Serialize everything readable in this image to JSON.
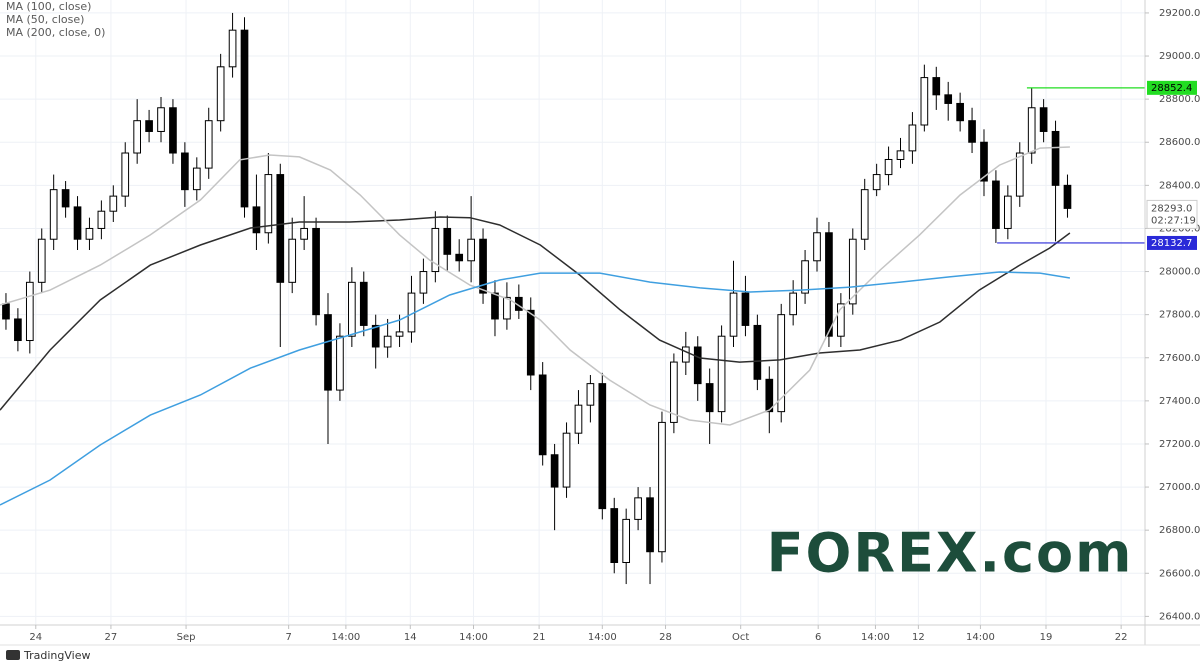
{
  "chart_data": {
    "type": "candlestick",
    "xlim": [
      -0.5,
      95.5
    ],
    "ylim": [
      26360,
      29260
    ],
    "grid": true,
    "xticks": [
      {
        "value": 2.5,
        "label": "24"
      },
      {
        "value": 8.8,
        "label": "27"
      },
      {
        "value": 15.1,
        "label": "Sep"
      },
      {
        "value": 23.7,
        "label": "7"
      },
      {
        "value": 28.5,
        "label": "14:00"
      },
      {
        "value": 33.9,
        "label": "14"
      },
      {
        "value": 39.2,
        "label": "14:00"
      },
      {
        "value": 44.7,
        "label": "21"
      },
      {
        "value": 50.0,
        "label": "14:00"
      },
      {
        "value": 55.3,
        "label": "28"
      },
      {
        "value": 61.6,
        "label": "Oct"
      },
      {
        "value": 68.1,
        "label": "6"
      },
      {
        "value": 72.9,
        "label": "14:00"
      },
      {
        "value": 76.5,
        "label": "12"
      },
      {
        "value": 81.7,
        "label": "14:00"
      },
      {
        "value": 87.2,
        "label": "19"
      },
      {
        "value": 93.5,
        "label": "22"
      }
    ],
    "yticks": [
      {
        "value": 26400,
        "label": "26400.0"
      },
      {
        "value": 26600,
        "label": "26600.0"
      },
      {
        "value": 26800,
        "label": "26800.0"
      },
      {
        "value": 27000,
        "label": "27000.0"
      },
      {
        "value": 27200,
        "label": "27200.0"
      },
      {
        "value": 27400,
        "label": "27400.0"
      },
      {
        "value": 27600,
        "label": "27600.0"
      },
      {
        "value": 27800,
        "label": "27800.0"
      },
      {
        "value": 28000,
        "label": "28000.0"
      },
      {
        "value": 28200,
        "label": "28200.0"
      },
      {
        "value": 28400,
        "label": "28400.0"
      },
      {
        "value": 28600,
        "label": "28600.0"
      },
      {
        "value": 28800,
        "label": "28800.0"
      },
      {
        "value": 29000,
        "label": "29000.0"
      },
      {
        "value": 29200,
        "label": "29200.0"
      }
    ],
    "up_color": "#ffffff",
    "down_color": "#000000",
    "open": [
      27850,
      27780,
      27680,
      27950,
      28150,
      28380,
      28300,
      28150,
      28200,
      28280,
      28350,
      28550,
      28700,
      28650,
      28760,
      28550,
      28380,
      28480,
      28700,
      28950,
      29120,
      28300,
      28180,
      28450,
      27950,
      28150,
      28200,
      27800,
      27450,
      27700,
      27950,
      27750,
      27650,
      27700,
      27720,
      27900,
      28000,
      28200,
      28080,
      28050,
      28150,
      27900,
      27780,
      27880,
      27820,
      27520,
      27150,
      27000,
      27250,
      27380,
      27480,
      26900,
      26650,
      26850,
      26950,
      26700,
      27300,
      27580,
      27650,
      27480,
      27350,
      27700,
      27900,
      27750,
      27500,
      27350,
      27800,
      27900,
      28050,
      28180,
      27700,
      27850,
      28150,
      28380,
      28450,
      28520,
      28560,
      28680,
      28900,
      28820,
      28780,
      28700,
      28600,
      28420,
      28200,
      28350,
      28550,
      28760,
      28650,
      28400
    ],
    "high": [
      27900,
      27830,
      28000,
      28200,
      28450,
      28420,
      28350,
      28250,
      28330,
      28400,
      28600,
      28800,
      28750,
      28810,
      28800,
      28600,
      28530,
      28760,
      29010,
      29200,
      29180,
      28450,
      28550,
      28500,
      28250,
      28350,
      28250,
      27900,
      27760,
      28020,
      28000,
      27800,
      27780,
      27800,
      27980,
      28060,
      28280,
      28260,
      28150,
      28350,
      28200,
      27960,
      27950,
      27940,
      27880,
      27580,
      27200,
      27300,
      27450,
      27520,
      27530,
      26950,
      26900,
      27000,
      27000,
      27350,
      27620,
      27720,
      27700,
      27550,
      27750,
      28050,
      27980,
      27800,
      27560,
      27850,
      27960,
      28100,
      28250,
      28230,
      27900,
      28200,
      28430,
      28500,
      28580,
      28620,
      28740,
      28960,
      28950,
      28880,
      28830,
      28760,
      28660,
      28470,
      28400,
      28600,
      28852.4,
      28800,
      28700,
      28450
    ],
    "low": [
      27730,
      27630,
      27620,
      27900,
      28100,
      28250,
      28100,
      28100,
      28150,
      28230,
      28300,
      28500,
      28600,
      28600,
      28500,
      28300,
      28330,
      28430,
      28650,
      28900,
      28250,
      28100,
      28130,
      27650,
      27900,
      28100,
      27750,
      27200,
      27400,
      27650,
      27700,
      27550,
      27600,
      27650,
      27670,
      27850,
      27950,
      28000,
      28000,
      27950,
      27850,
      27700,
      27730,
      27780,
      27450,
      27100,
      26800,
      26950,
      27200,
      27300,
      26850,
      26600,
      26550,
      26800,
      26550,
      26650,
      27250,
      27520,
      27400,
      27200,
      27300,
      27650,
      27700,
      27450,
      27250,
      27300,
      27750,
      27850,
      28000,
      27650,
      27650,
      27800,
      28100,
      28350,
      28400,
      28480,
      28500,
      28650,
      28750,
      28700,
      28650,
      28550,
      28350,
      28132.7,
      28150,
      28300,
      28500,
      28600,
      28140,
      28250
    ],
    "close": [
      27780,
      27680,
      27950,
      28150,
      28380,
      28300,
      28150,
      28200,
      28280,
      28350,
      28550,
      28700,
      28650,
      28760,
      28550,
      28380,
      28480,
      28700,
      28950,
      29120,
      28300,
      28180,
      28450,
      27950,
      28150,
      28200,
      27800,
      27450,
      27700,
      27950,
      27750,
      27650,
      27700,
      27720,
      27900,
      28000,
      28200,
      28080,
      28050,
      28150,
      27900,
      27780,
      27880,
      27820,
      27520,
      27150,
      27000,
      27250,
      27380,
      27480,
      26900,
      26650,
      26850,
      26950,
      26700,
      27300,
      27580,
      27650,
      27480,
      27350,
      27700,
      27900,
      27750,
      27500,
      27350,
      27800,
      27900,
      28050,
      28180,
      27700,
      27850,
      28150,
      28380,
      28450,
      28520,
      28560,
      28680,
      28900,
      28820,
      28780,
      28700,
      28600,
      28420,
      28200,
      28350,
      28550,
      28760,
      28650,
      28400,
      28293
    ],
    "series": [
      {
        "name": "MA (100, close)",
        "color": "#2e2e2e",
        "x": [
          -0.5,
          3.7,
          7.9,
          12.1,
          16.3,
          20.5,
          24.6,
          28.8,
          33.0,
          36.4,
          38.9,
          41.4,
          44.8,
          48.1,
          51.5,
          54.8,
          58.2,
          61.5,
          64.9,
          68.2,
          71.6,
          75.0,
          78.3,
          81.6,
          85.0,
          87.5,
          89.2
        ],
        "values": [
          27357,
          27636,
          27868,
          28030,
          28123,
          28202,
          28230,
          28230,
          28239,
          28253,
          28250,
          28216,
          28123,
          27984,
          27822,
          27682,
          27599,
          27580,
          27590,
          27622,
          27636,
          27682,
          27766,
          27914,
          28030,
          28109,
          28179
        ]
      },
      {
        "name": "MA (50, close)",
        "color": "#c4c4c4",
        "x": [
          -0.5,
          3.7,
          7.9,
          12.1,
          16.3,
          19.6,
          22.1,
          24.6,
          27.2,
          29.7,
          33.0,
          35.5,
          38.9,
          42.3,
          44.8,
          47.3,
          50.6,
          54.0,
          57.3,
          60.7,
          64.0,
          67.4,
          69.9,
          73.3,
          76.6,
          80.0,
          83.3,
          86.7,
          89.2
        ],
        "values": [
          27845,
          27914,
          28030,
          28170,
          28332,
          28518,
          28541,
          28532,
          28471,
          28355,
          28170,
          28054,
          27937,
          27868,
          27775,
          27636,
          27497,
          27381,
          27311,
          27288,
          27357,
          27543,
          27822,
          28007,
          28170,
          28355,
          28494,
          28573,
          28578
        ]
      },
      {
        "name": "MA (200, close, 0)",
        "color": "#3f9fe0",
        "x": [
          -0.5,
          3.7,
          7.9,
          12.1,
          16.3,
          20.5,
          24.6,
          28.8,
          33.0,
          37.2,
          41.4,
          44.8,
          49.8,
          54.0,
          58.2,
          62.4,
          66.6,
          70.8,
          75.0,
          79.1,
          83.3,
          86.7,
          89.2
        ],
        "values": [
          26917,
          27033,
          27195,
          27334,
          27427,
          27552,
          27636,
          27705,
          27775,
          27891,
          27961,
          27993,
          27993,
          27951,
          27924,
          27905,
          27914,
          27928,
          27951,
          27975,
          27998,
          27993,
          27970
        ]
      }
    ],
    "levels": [
      {
        "value": 28852.4,
        "label": "28852.4",
        "color": "#22dd22",
        "start": 85.6
      },
      {
        "value": 28132.7,
        "label": "28132.7",
        "color": "#2a2ad8",
        "start": 83.1
      }
    ],
    "last_price": {
      "value": 28293,
      "label": "28293.0"
    },
    "countdown": "02:27:19",
    "watermark": "FOREX.com",
    "branding": "TradingView"
  }
}
